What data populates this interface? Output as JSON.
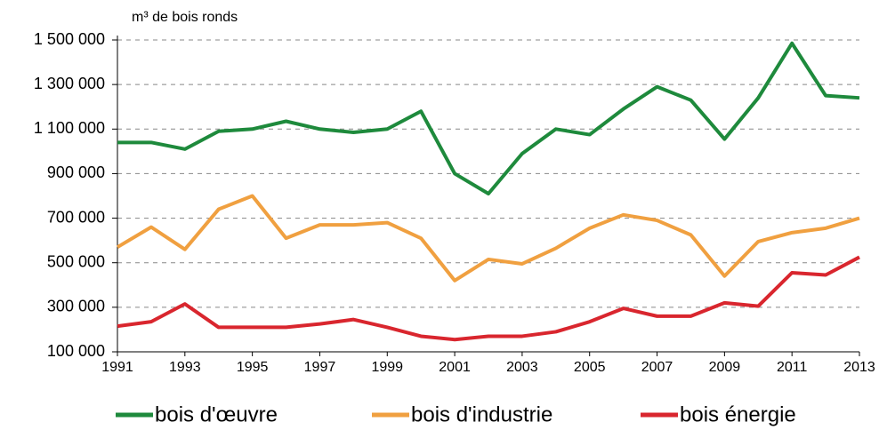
{
  "chart_data": {
    "type": "line",
    "y_axis_label": "m³ de bois ronds",
    "x": [
      1991,
      1992,
      1993,
      1994,
      1995,
      1996,
      1997,
      1998,
      1999,
      2000,
      2001,
      2002,
      2003,
      2004,
      2005,
      2006,
      2007,
      2008,
      2009,
      2010,
      2011,
      2012,
      2013
    ],
    "xlim": [
      1991,
      2013
    ],
    "xticks": [
      1991,
      1993,
      1995,
      1997,
      1999,
      2001,
      2003,
      2005,
      2007,
      2009,
      2011,
      2013
    ],
    "ylim": [
      100000,
      1500000
    ],
    "yticks": [
      {
        "value": 100000,
        "label": "100 000"
      },
      {
        "value": 300000,
        "label": "300 000"
      },
      {
        "value": 500000,
        "label": "500 000"
      },
      {
        "value": 700000,
        "label": "700 000"
      },
      {
        "value": 900000,
        "label": "900 000"
      },
      {
        "value": 1100000,
        "label": "1 100 000"
      },
      {
        "value": 1300000,
        "label": "1 300 000"
      },
      {
        "value": 1500000,
        "label": "1 500 000"
      }
    ],
    "grid": true,
    "legend": "bottom",
    "series": [
      {
        "name": "bois d'œuvre",
        "color": "#1e8a3c",
        "values": [
          1040000,
          1040000,
          1010000,
          1090000,
          1100000,
          1135000,
          1100000,
          1085000,
          1100000,
          1180000,
          900000,
          810000,
          990000,
          1100000,
          1075000,
          1190000,
          1290000,
          1230000,
          1055000,
          1240000,
          1485000,
          1250000,
          1240000
        ]
      },
      {
        "name": "bois d'industrie",
        "color": "#f0a040",
        "values": [
          570000,
          660000,
          560000,
          740000,
          800000,
          610000,
          670000,
          670000,
          680000,
          610000,
          420000,
          515000,
          495000,
          565000,
          655000,
          715000,
          690000,
          625000,
          440000,
          595000,
          635000,
          655000,
          700000
        ]
      },
      {
        "name": "bois énergie",
        "color": "#d9262e",
        "values": [
          215000,
          235000,
          315000,
          210000,
          210000,
          210000,
          225000,
          245000,
          210000,
          170000,
          155000,
          170000,
          170000,
          190000,
          235000,
          295000,
          260000,
          260000,
          320000,
          305000,
          455000,
          445000,
          525000
        ]
      }
    ]
  }
}
